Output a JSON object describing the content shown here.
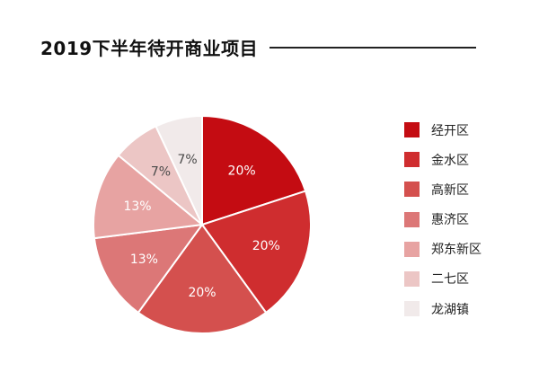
{
  "chart_data": {
    "type": "pie",
    "title": "2019下半年待开商业项目",
    "categories": [
      "经开区",
      "金水区",
      "高新区",
      "惠济区",
      "郑东新区",
      "二七区",
      "龙湖镇"
    ],
    "values": [
      20,
      20,
      20,
      13,
      13,
      7,
      7
    ],
    "value_labels": [
      "20%",
      "20%",
      "20%",
      "13%",
      "13%",
      "7%",
      "7%"
    ],
    "colors": [
      "#c40c12",
      "#cf2d2f",
      "#d4504e",
      "#dc7777",
      "#e7a3a2",
      "#ecc6c5",
      "#f1eaea"
    ],
    "legend_position": "right"
  }
}
